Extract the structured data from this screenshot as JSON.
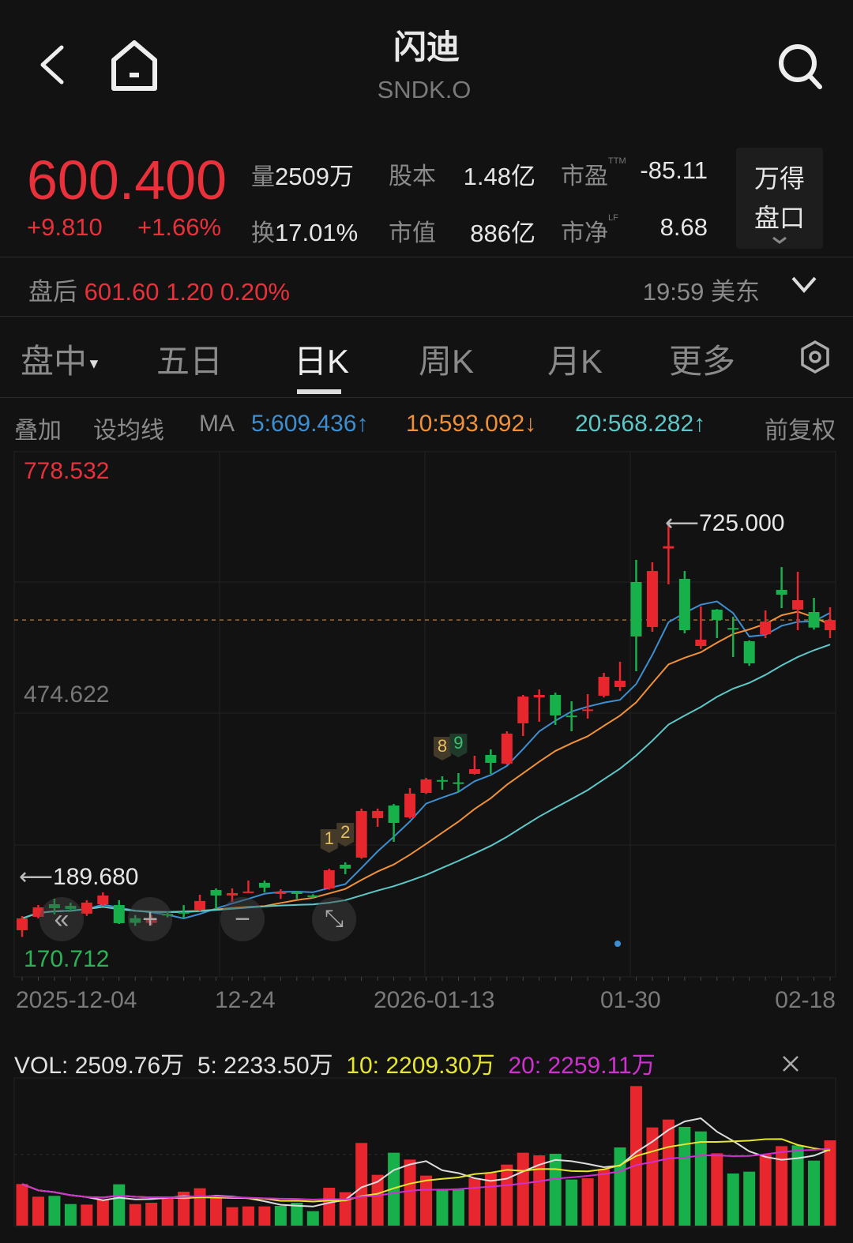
{
  "header": {
    "title": "闪迪",
    "ticker": "SNDK.O"
  },
  "quote": {
    "price": "600.400",
    "change": "+9.810",
    "change_pct": "+1.66%",
    "stats": [
      {
        "label": "量",
        "value": "2509万"
      },
      {
        "label": "股本",
        "value": "1.48亿"
      },
      {
        "label": "市盈",
        "sup": "TTM",
        "value": "-85.11"
      },
      {
        "label": "换",
        "value": "17.01%"
      },
      {
        "label": "市值",
        "value": "886亿"
      },
      {
        "label": "市净",
        "sup": "LF",
        "value": "8.68"
      }
    ],
    "panel_button": {
      "line1": "万得",
      "line2": "盘口"
    }
  },
  "after_hours": {
    "label": "盘后",
    "price": "601.60",
    "change": "1.20",
    "change_pct": "0.20%",
    "time": "19:59",
    "tz": "美东"
  },
  "tabs": [
    {
      "label": "盘中",
      "active": false
    },
    {
      "label": "五日",
      "active": false
    },
    {
      "label": "日K",
      "active": true
    },
    {
      "label": "周K",
      "active": false
    },
    {
      "label": "月K",
      "active": false
    },
    {
      "label": "更多",
      "active": false
    }
  ],
  "ma_bar": {
    "overlay": "叠加",
    "set_ma": "设均线",
    "ma": "MA",
    "ma5": "5:609.436↑",
    "ma10": "10:593.092↓",
    "ma20": "20:568.282↑",
    "adjust": "前复权"
  },
  "colors": {
    "up": "#e8262d",
    "down": "#17b04b",
    "ma5": "#3d8fd1",
    "ma10": "#f0913a",
    "ma20": "#5ec8c8",
    "vol5": "#dddddd",
    "vol10": "#e6e62e",
    "vol20": "#d030d0"
  },
  "chart_data": {
    "type": "candlestick",
    "y_labels": [
      "778.532",
      "474.622",
      "170.712"
    ],
    "ylim": [
      170.712,
      778.532
    ],
    "x_tick_labels": [
      "2025-12-04",
      "12-24",
      "2026-01-13",
      "01-30",
      "02-18"
    ],
    "current_price": 600.4,
    "high_annotation": "725.000",
    "low_annotation": "189.680",
    "ma_periods": [
      5,
      10,
      20
    ],
    "candles_ohlc": [
      [
        198.4,
        216.8,
        189.68,
        213.7
      ],
      [
        215.8,
        231.1,
        213.7,
        228.0
      ],
      [
        232.1,
        239.3,
        218.8,
        227.0
      ],
      [
        230,
        234,
        222,
        226
      ],
      [
        219.9,
        237.3,
        217,
        234.2
      ],
      [
        232.1,
        247.5,
        230,
        243.4
      ],
      [
        231.1,
        237.3,
        206.5,
        207.6
      ],
      [
        214,
        218,
        204,
        208
      ],
      [
        208,
        218,
        205,
        214
      ],
      [
        219.5,
        223,
        215,
        218.5
      ],
      [
        222,
        231,
        214,
        220.5
      ],
      [
        224.9,
        244.4,
        223,
        236.3
      ],
      [
        250.5,
        252.6,
        226,
        243.4
      ],
      [
        243.4,
        252.6,
        235,
        246.5
      ],
      [
        248,
        262.8,
        247,
        248.6
      ],
      [
        259.8,
        262.8,
        247.5,
        253.6
      ],
      [
        246,
        251.6,
        239,
        247.5
      ],
      [
        247.5,
        249.5,
        239,
        246
      ],
      [
        243.5,
        245,
        240,
        242.5
      ],
      [
        252.6,
        278.2,
        251,
        276.2
      ],
      [
        283.3,
        286.4,
        271,
        278.2
      ],
      [
        292.5,
        356.0,
        291,
        352.9
      ],
      [
        343.7,
        356.0,
        332.4,
        352.9
      ],
      [
        360.0,
        362,
        313.0,
        337.5
      ],
      [
        344.7,
        382.5,
        343,
        375.4
      ],
      [
        376.4,
        395.9,
        375,
        393.8
      ],
      [
        393,
        397.9,
        380.5,
        392
      ],
      [
        390,
        402,
        377.4,
        389
      ],
      [
        401.0,
        424.5,
        400,
        407.1
      ],
      [
        425.5,
        432.7,
        401,
        415.3
      ],
      [
        414.3,
        456.2,
        413,
        453.2
      ],
      [
        466.5,
        503.3,
        450.1,
        501.2
      ],
      [
        500,
        510.4,
        468.5,
        503.3
      ],
      [
        503.3,
        506.3,
        464.4,
        476.7
      ],
      [
        476.5,
        495.1,
        456.2,
        475.0
      ],
      [
        482.5,
        504.3,
        472.6,
        484.5
      ],
      [
        502.3,
        531.9,
        500,
        526.8
      ],
      [
        513.5,
        546.3,
        508.4,
        521.7
      ],
      [
        649.6,
        678.2,
        534.0,
        579.0
      ],
      [
        591.3,
        675.2,
        585.1,
        663.9
      ],
      [
        693,
        725.0,
        646.5,
        696
      ],
      [
        653.7,
        663.9,
        583.1,
        587.2
      ],
      [
        566.7,
        617.9,
        563,
        574.9
      ],
      [
        613.8,
        614.5,
        577,
        600.5
      ],
      [
        590,
        604.6,
        552.4,
        588
      ],
      [
        572.9,
        574,
        541,
        544.2
      ],
      [
        582.1,
        612.8,
        577,
        598.4
      ],
      [
        639.4,
        669.0,
        615.8,
        633.2
      ],
      [
        613.8,
        662.9,
        587.2,
        626.1
      ],
      [
        610.7,
        629.1,
        588,
        590.59
      ],
      [
        587.2,
        616.9,
        577,
        600.4
      ]
    ],
    "markers": [
      {
        "label": "1",
        "index": 19,
        "color": "#e8c060"
      },
      {
        "label": "2",
        "index": 20,
        "color": "#e8c060"
      },
      {
        "label": "8",
        "index": 26,
        "color": "#e8c060"
      },
      {
        "label": "9",
        "index": 27,
        "color": "#3cc070"
      }
    ],
    "volume": {
      "unit": "万",
      "values": [
        1224,
        852,
        875,
        635,
        620,
        759,
        1216,
        635,
        674,
        813,
        999,
        1100,
        813,
        542,
        566,
        566,
        581,
        674,
        426,
        1116,
        984,
        2433,
        1495,
        2146,
        1944,
        1472,
        1084,
        1084,
        1394,
        1549,
        1797,
        2146,
        2068,
        2115,
        1356,
        1394,
        1665,
        2301,
        4106,
        2890,
        3122,
        2905,
        2773,
        2130,
        1534,
        1588,
        2092,
        2339,
        2362,
        1913,
        2509.76
      ]
    }
  },
  "volume_header": {
    "vol": "VOL: 2509.76万",
    "ma5": "5: 2233.50万",
    "ma10": "10: 2209.30万",
    "ma20": "20: 2259.11万"
  }
}
